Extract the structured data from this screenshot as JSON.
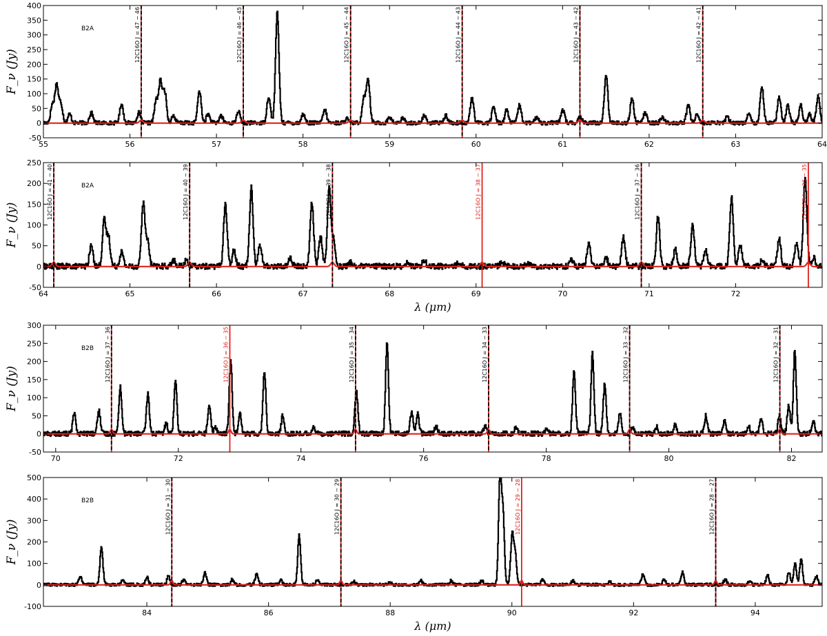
{
  "colors": {
    "spectrum": "#000000",
    "model": "#e0201b",
    "frame": "#000000"
  },
  "chart_data": [
    {
      "type": "line",
      "band": "B2A",
      "ylabel": "F_ν (Jy)",
      "xlabel": "",
      "xlim": [
        55,
        64
      ],
      "ylim": [
        -50,
        400
      ],
      "xticks": [
        55,
        56,
        57,
        58,
        59,
        60,
        61,
        62,
        63,
        64
      ],
      "yticks": [
        -50,
        0,
        50,
        100,
        150,
        200,
        250,
        300,
        350,
        400
      ],
      "peaks": [
        [
          55.1,
          60
        ],
        [
          55.15,
          130
        ],
        [
          55.2,
          65
        ],
        [
          55.3,
          30
        ],
        [
          55.55,
          35
        ],
        [
          55.9,
          65
        ],
        [
          56.1,
          35
        ],
        [
          56.3,
          75
        ],
        [
          56.35,
          140
        ],
        [
          56.4,
          105
        ],
        [
          56.5,
          25
        ],
        [
          56.8,
          110
        ],
        [
          56.9,
          30
        ],
        [
          57.05,
          25
        ],
        [
          57.25,
          40
        ],
        [
          57.6,
          90
        ],
        [
          57.7,
          375
        ],
        [
          58.0,
          30
        ],
        [
          58.25,
          45
        ],
        [
          58.5,
          15
        ],
        [
          58.7,
          85
        ],
        [
          58.75,
          150
        ],
        [
          59.0,
          20
        ],
        [
          59.15,
          15
        ],
        [
          59.4,
          25
        ],
        [
          59.65,
          25
        ],
        [
          59.95,
          85
        ],
        [
          60.2,
          55
        ],
        [
          60.35,
          45
        ],
        [
          60.5,
          60
        ],
        [
          60.7,
          20
        ],
        [
          61.0,
          45
        ],
        [
          61.2,
          20
        ],
        [
          61.5,
          165
        ],
        [
          61.8,
          85
        ],
        [
          61.95,
          35
        ],
        [
          62.15,
          20
        ],
        [
          62.45,
          60
        ],
        [
          62.55,
          30
        ],
        [
          62.9,
          20
        ],
        [
          63.15,
          30
        ],
        [
          63.3,
          125
        ],
        [
          63.5,
          90
        ],
        [
          63.6,
          60
        ],
        [
          63.75,
          60
        ],
        [
          63.85,
          30
        ],
        [
          63.95,
          90
        ]
      ],
      "red_line_peak": 10,
      "lines": [
        {
          "x": 56.13,
          "label": "12C16O J = 47 − 46",
          "style": "black"
        },
        {
          "x": 57.31,
          "label": "12C16O J = 46 − 45",
          "style": "black"
        },
        {
          "x": 58.55,
          "label": "12C16O J = 45 − 44",
          "style": "black"
        },
        {
          "x": 59.84,
          "label": "12C16O J = 44 − 43",
          "style": "black"
        },
        {
          "x": 61.2,
          "label": "12C16O J = 43 − 42",
          "style": "black"
        },
        {
          "x": 62.62,
          "label": "12C16O J = 42 − 41",
          "style": "black"
        }
      ]
    },
    {
      "type": "line",
      "band": "B2A",
      "ylabel": "F_ν (Jy)",
      "xlabel": "λ (μm)",
      "xlim": [
        64,
        73
      ],
      "ylim": [
        -50,
        250
      ],
      "xticks": [
        64,
        65,
        66,
        67,
        68,
        69,
        70,
        71,
        72
      ],
      "yticks": [
        -50,
        0,
        50,
        100,
        150,
        200,
        250
      ],
      "peaks": [
        [
          64.55,
          50
        ],
        [
          64.7,
          110
        ],
        [
          64.75,
          70
        ],
        [
          64.9,
          35
        ],
        [
          65.15,
          150
        ],
        [
          65.2,
          60
        ],
        [
          65.5,
          15
        ],
        [
          65.65,
          15
        ],
        [
          66.1,
          150
        ],
        [
          66.2,
          40
        ],
        [
          66.4,
          190
        ],
        [
          66.5,
          50
        ],
        [
          66.85,
          20
        ],
        [
          67.1,
          155
        ],
        [
          67.2,
          70
        ],
        [
          67.3,
          185
        ],
        [
          67.35,
          60
        ],
        [
          67.55,
          10
        ],
        [
          68.2,
          10
        ],
        [
          68.4,
          15
        ],
        [
          68.8,
          10
        ],
        [
          69.3,
          10
        ],
        [
          69.6,
          10
        ],
        [
          70.1,
          15
        ],
        [
          70.3,
          55
        ],
        [
          70.5,
          20
        ],
        [
          70.7,
          70
        ],
        [
          71.1,
          120
        ],
        [
          71.3,
          40
        ],
        [
          71.5,
          100
        ],
        [
          71.65,
          40
        ],
        [
          71.95,
          165
        ],
        [
          72.05,
          50
        ],
        [
          72.3,
          15
        ],
        [
          72.5,
          65
        ],
        [
          72.7,
          55
        ],
        [
          72.8,
          215
        ],
        [
          72.9,
          20
        ]
      ],
      "red_line_peak": 10,
      "lines": [
        {
          "x": 64.12,
          "label": "12C16O J = 41 − 40",
          "style": "black"
        },
        {
          "x": 65.69,
          "label": "12C16O J = 40 − 39",
          "style": "black"
        },
        {
          "x": 67.34,
          "label": "12C16O J = 39 − 38",
          "style": "black"
        },
        {
          "x": 69.07,
          "label": "12C16O J = 38 − 37",
          "style": "red"
        },
        {
          "x": 70.91,
          "label": "12C16O J = 37 − 36",
          "style": "black"
        },
        {
          "x": 72.84,
          "label": "12C16O J = 36 − 35",
          "style": "red"
        }
      ]
    },
    {
      "type": "line",
      "band": "B2B",
      "ylabel": "F_ν (Jy)",
      "xlabel": "",
      "xlim": [
        69.8,
        82.5
      ],
      "ylim": [
        -50,
        300
      ],
      "xticks": [
        70,
        72,
        74,
        76,
        78,
        80,
        82
      ],
      "yticks": [
        -50,
        0,
        50,
        100,
        150,
        200,
        250,
        300
      ],
      "peaks": [
        [
          70.3,
          60
        ],
        [
          70.7,
          65
        ],
        [
          71.05,
          130
        ],
        [
          71.5,
          110
        ],
        [
          71.8,
          30
        ],
        [
          71.95,
          150
        ],
        [
          72.5,
          75
        ],
        [
          72.6,
          20
        ],
        [
          72.85,
          205
        ],
        [
          73.0,
          60
        ],
        [
          73.4,
          175
        ],
        [
          73.7,
          50
        ],
        [
          74.2,
          20
        ],
        [
          74.9,
          120
        ],
        [
          75.4,
          250
        ],
        [
          75.8,
          60
        ],
        [
          75.9,
          55
        ],
        [
          76.2,
          20
        ],
        [
          77.0,
          20
        ],
        [
          77.5,
          20
        ],
        [
          78.0,
          15
        ],
        [
          78.45,
          175
        ],
        [
          78.75,
          220
        ],
        [
          78.95,
          140
        ],
        [
          79.2,
          60
        ],
        [
          79.4,
          20
        ],
        [
          79.8,
          20
        ],
        [
          80.1,
          25
        ],
        [
          80.6,
          50
        ],
        [
          80.9,
          35
        ],
        [
          81.3,
          20
        ],
        [
          81.5,
          40
        ],
        [
          81.8,
          50
        ],
        [
          81.95,
          80
        ],
        [
          82.05,
          230
        ],
        [
          82.35,
          35
        ]
      ],
      "red_line_peak": 12,
      "lines": [
        {
          "x": 70.91,
          "label": "12C16O J = 37 − 36",
          "style": "black"
        },
        {
          "x": 72.84,
          "label": "12C16O J = 36 − 35",
          "style": "red"
        },
        {
          "x": 74.89,
          "label": "12C16O J = 35 − 34",
          "style": "black"
        },
        {
          "x": 77.06,
          "label": "12C16O J = 34 − 33",
          "style": "black"
        },
        {
          "x": 79.36,
          "label": "12C16O J = 33 − 32",
          "style": "black"
        },
        {
          "x": 81.81,
          "label": "12C16O J = 32 − 31",
          "style": "black"
        }
      ]
    },
    {
      "type": "line",
      "band": "B2B",
      "ylabel": "F_ν (Jy)",
      "xlabel": "λ (μm)",
      "xlim": [
        82.3,
        95.1
      ],
      "ylim": [
        -100,
        500
      ],
      "xticks": [
        84,
        86,
        88,
        90,
        92,
        94
      ],
      "yticks": [
        -100,
        0,
        100,
        200,
        300,
        400,
        500
      ],
      "peaks": [
        [
          82.9,
          40
        ],
        [
          83.25,
          180
        ],
        [
          83.6,
          25
        ],
        [
          84.0,
          35
        ],
        [
          84.35,
          40
        ],
        [
          84.6,
          25
        ],
        [
          84.95,
          60
        ],
        [
          85.4,
          25
        ],
        [
          85.8,
          50
        ],
        [
          86.2,
          20
        ],
        [
          86.5,
          230
        ],
        [
          86.8,
          20
        ],
        [
          87.4,
          15
        ],
        [
          88.0,
          15
        ],
        [
          88.5,
          20
        ],
        [
          89.0,
          20
        ],
        [
          89.5,
          20
        ],
        [
          89.8,
          490
        ],
        [
          89.85,
          320
        ],
        [
          90.0,
          230
        ],
        [
          90.05,
          140
        ],
        [
          90.5,
          25
        ],
        [
          91.0,
          20
        ],
        [
          91.6,
          15
        ],
        [
          92.15,
          50
        ],
        [
          92.5,
          25
        ],
        [
          92.8,
          60
        ],
        [
          93.5,
          25
        ],
        [
          93.9,
          15
        ],
        [
          94.2,
          45
        ],
        [
          94.55,
          60
        ],
        [
          94.65,
          100
        ],
        [
          94.75,
          120
        ],
        [
          95.0,
          40
        ]
      ],
      "red_line_peak": 20,
      "lines": [
        {
          "x": 84.41,
          "label": "12C16O J = 31 − 30",
          "style": "black"
        },
        {
          "x": 87.19,
          "label": "12C16O J = 30 − 29",
          "style": "black"
        },
        {
          "x": 90.16,
          "label": "12C16O J = 29 − 28",
          "style": "red"
        },
        {
          "x": 93.35,
          "label": "12C16O J = 28 − 27",
          "style": "black"
        }
      ]
    }
  ]
}
